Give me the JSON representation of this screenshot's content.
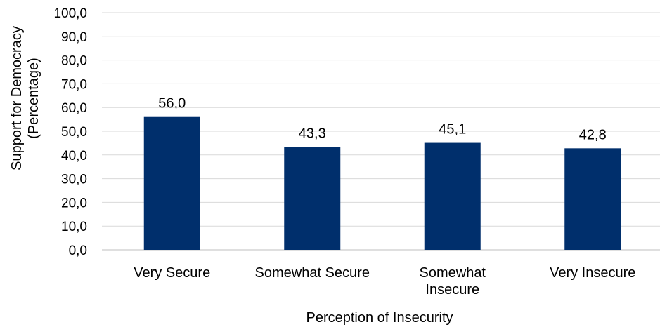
{
  "chart_data": {
    "type": "bar",
    "title": "",
    "categories": [
      "Very Secure",
      "Somewhat Secure",
      "Somewhat Insecure",
      "Very Insecure"
    ],
    "category_lines": [
      [
        "Very Secure"
      ],
      [
        "Somewhat Secure"
      ],
      [
        "Somewhat",
        "Insecure"
      ],
      [
        "Very Insecure"
      ]
    ],
    "values": [
      56.0,
      43.3,
      45.1,
      42.8
    ],
    "data_labels": [
      "56,0",
      "43,3",
      "45,1",
      "42,8"
    ],
    "ylim": [
      0,
      100
    ],
    "y_ticks": [
      0,
      10,
      20,
      30,
      40,
      50,
      60,
      70,
      80,
      90,
      100
    ],
    "y_tick_labels": [
      "0,0",
      "10,0",
      "20,0",
      "30,0",
      "40,0",
      "50,0",
      "60,0",
      "70,0",
      "80,0",
      "90,0",
      "100,0"
    ],
    "xlabel": "Perception of Insecurity",
    "ylabel_lines": [
      "Support for Democracy",
      "(Percentage)"
    ],
    "grid": true,
    "legend": "none",
    "colors": {
      "bar": "#002f6c",
      "grid": "#d9d9d9",
      "axis": "#bfbfbf"
    }
  }
}
